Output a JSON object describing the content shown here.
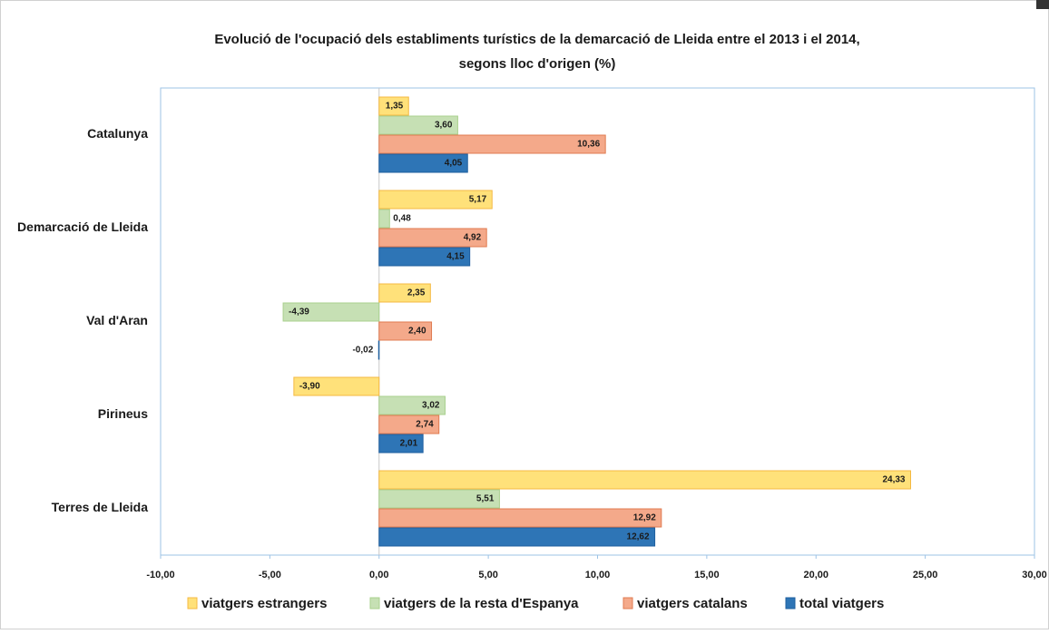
{
  "chart_data": {
    "type": "hbar",
    "title": [
      "Evolució de l'ocupació dels establiments turístics de la demarcació de Lleida entre el 2013 i el 2014,",
      "segons lloc d'origen (%)"
    ],
    "categories": [
      "Catalunya",
      "Demarcació de Lleida",
      "Val d'Aran",
      "Pirineus",
      "Terres de Lleida"
    ],
    "series": [
      {
        "name": "viatgers estrangers",
        "color": "#ffe17a",
        "values": [
          1.35,
          5.17,
          2.35,
          -3.9,
          24.33
        ],
        "value_labels": [
          "1,35",
          "5,17",
          "2,35",
          "-3,90",
          "24,33"
        ]
      },
      {
        "name": "viatgers de la resta d'Espanya",
        "color": "#c6e0b4",
        "values": [
          3.6,
          0.48,
          -4.39,
          3.02,
          5.51
        ],
        "value_labels": [
          "3,60",
          "0,48",
          "-4,39",
          "3,02",
          "5,51"
        ]
      },
      {
        "name": "viatgers catalans",
        "color": "#f4a98a",
        "values": [
          10.36,
          4.92,
          2.4,
          2.74,
          12.92
        ],
        "value_labels": [
          "10,36",
          "4,92",
          "2,40",
          "2,74",
          "12,92"
        ]
      },
      {
        "name": "total viatgers",
        "color": "#2e75b6",
        "values": [
          4.05,
          4.15,
          -0.02,
          2.01,
          12.62
        ],
        "value_labels": [
          "4,05",
          "4,15",
          "-0,02",
          "2,01",
          "12,62"
        ]
      }
    ],
    "xlim": [
      -10,
      30
    ],
    "xticks": [
      {
        "value": -10,
        "label": "-10,00"
      },
      {
        "value": -5,
        "label": "-5,00"
      },
      {
        "value": 0,
        "label": "0,00"
      },
      {
        "value": 5,
        "label": "5,00"
      },
      {
        "value": 10,
        "label": "10,00"
      },
      {
        "value": 15,
        "label": "15,00"
      },
      {
        "value": 20,
        "label": "20,00"
      },
      {
        "value": 25,
        "label": "25,00"
      },
      {
        "value": 30,
        "label": "30,00"
      }
    ],
    "grid": false,
    "legend": "bottom"
  }
}
